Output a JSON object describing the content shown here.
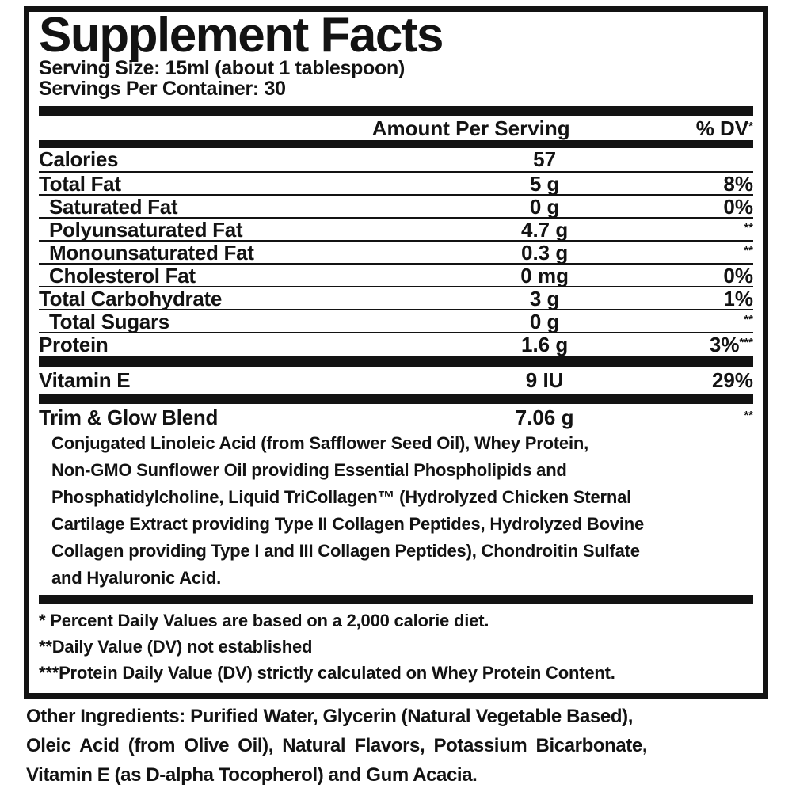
{
  "colors": {
    "ink": "#131313",
    "background": "#ffffff"
  },
  "label": {
    "title": "Supplement Facts",
    "serving_size": "Serving Size: 15ml (about 1 tablespoon)",
    "servings_per_container": "Servings Per Container: 30",
    "header": {
      "amount": "Amount Per Serving",
      "dv": "% DV",
      "dv_sup": "*"
    },
    "rows": [
      {
        "label": "Calories",
        "amount": "57",
        "dv": "",
        "sup": ""
      },
      {
        "label": "Total Fat",
        "amount": "5 g",
        "dv": "8%",
        "sup": ""
      },
      {
        "label": "Saturated Fat",
        "amount": "0 g",
        "dv": "0%",
        "sup": ""
      },
      {
        "label": "Polyunsaturated Fat",
        "amount": "4.7 g",
        "dv": "",
        "sup": "**"
      },
      {
        "label": "Monounsaturated Fat",
        "amount": "0.3 g",
        "dv": "",
        "sup": "**"
      },
      {
        "label": "Cholesterol Fat",
        "amount": "0 mg",
        "dv": "0%",
        "sup": ""
      },
      {
        "label": "Total Carbohydrate",
        "amount": "3 g",
        "dv": "1%",
        "sup": ""
      },
      {
        "label": "Total Sugars",
        "amount": "0 g",
        "dv": "",
        "sup": "**"
      },
      {
        "label": "Protein",
        "amount": "1.6 g",
        "dv": "3%",
        "sup": "***"
      }
    ],
    "vitamin_row": {
      "label": "Vitamin E",
      "amount": "9 IU",
      "dv": "29%",
      "sup": ""
    },
    "blend_row": {
      "label": "Trim & Glow Blend",
      "amount": "7.06 g",
      "sup": "**"
    },
    "blend_description_lines": [
      "Conjugated Linoleic Acid (from Safflower Seed Oil), Whey Protein,",
      "Non-GMO Sunflower Oil providing Essential Phospholipids and",
      "Phosphatidylcholine, Liquid TriCollagen™ (Hydrolyzed Chicken Sternal",
      "Cartilage Extract providing Type II Collagen Peptides, Hydrolyzed Bovine",
      "Collagen providing Type I and III Collagen Peptides), Chondroitin Sulfate",
      "and Hyaluronic Acid."
    ],
    "footnotes": [
      "* Percent Daily Values are based on a 2,000 calorie diet.",
      "**Daily Value (DV) not established",
      "***Protein Daily Value (DV) strictly calculated on Whey Protein Content."
    ]
  },
  "other_ingredients": {
    "lines": [
      "Other Ingredients: Purified Water, Glycerin (Natural Vegetable Based),",
      "Oleic Acid (from Olive Oil), Natural Flavors, Potassium Bicarbonate,",
      "Vitamin E (as D-alpha Tocopherol) and Gum Acacia."
    ]
  }
}
